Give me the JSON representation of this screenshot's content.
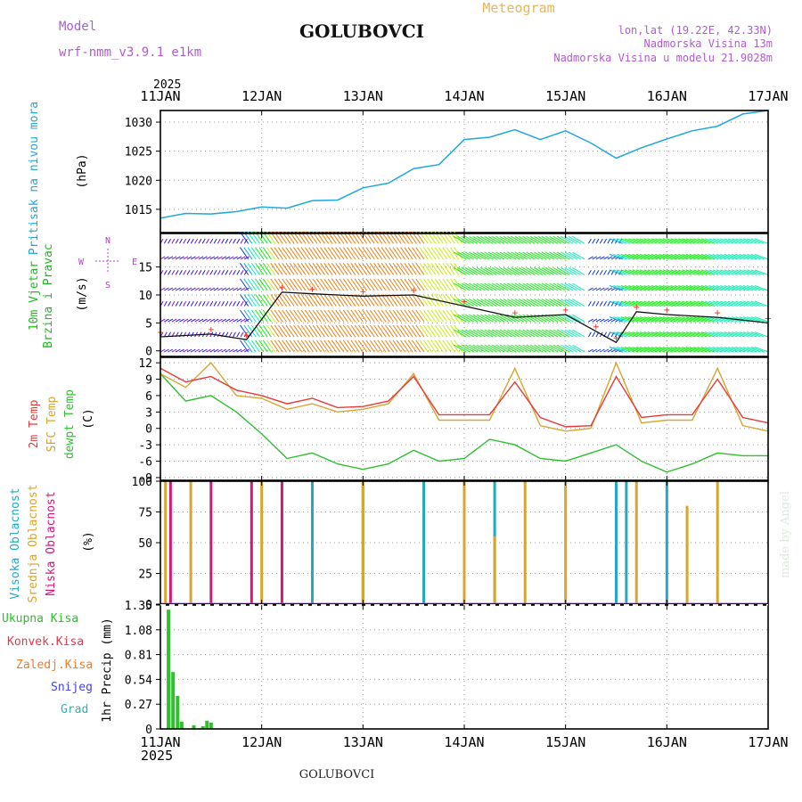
{
  "header": {
    "model_label": "Model",
    "model_name": "wrf-nmm_v3.9.1 e1km",
    "location": "GOLUBOVCI",
    "chart_type_label": "Meteogram",
    "coords": "lon,lat (19.22E, 42.33N)",
    "elevation": "Nadmorska Visina 13m",
    "model_elevation": "Nadmorska Visina u modelu 21.9028m"
  },
  "footer": {
    "location": "GOLUBOVCI",
    "credit": "made by Angel"
  },
  "colors": {
    "pressure": "#1fa8dc",
    "temp2m": "#e83a3a",
    "sfc_temp": "#d8a530",
    "dewpoint": "#2fbf2f",
    "cloud_high": "#21a9c6",
    "cloud_mid": "#d8a530",
    "cloud_low": "#d6157b",
    "precip": "#2fbf2f",
    "wind_label": "#21b921",
    "compass": "#b93cc8",
    "snow": "#4444dd",
    "graupel": "#2ab5b5",
    "frozen": "#f07a2a",
    "conv": "#e8364a"
  },
  "chart_data": [
    {
      "type": "line",
      "title": "Pritisak na nivou mora",
      "ylabel": "(hPa)",
      "x_ticks": [
        "11JAN",
        "12JAN",
        "13JAN",
        "14JAN",
        "15JAN",
        "16JAN",
        "17JAN"
      ],
      "x_year": "2025",
      "ylim": [
        1011,
        1032
      ],
      "y_ticks": [
        "1015",
        "1020",
        "1025",
        "1030"
      ],
      "grid": true,
      "series": [
        {
          "name": "Pritisak na nivou mora",
          "x_days": [
            0,
            0.25,
            0.5,
            0.75,
            1.0,
            1.25,
            1.5,
            1.75,
            2.0,
            2.25,
            2.5,
            2.75,
            3.0,
            3.25,
            3.5,
            3.75,
            4.0,
            4.25,
            4.5,
            4.75,
            5.0,
            5.25,
            5.5,
            5.75,
            6.0
          ],
          "values": [
            1013.5,
            1014.3,
            1014.2,
            1014.6,
            1015.4,
            1015.2,
            1016.5,
            1016.6,
            1018.7,
            1019.5,
            1022.0,
            1022.7,
            1027.0,
            1027.4,
            1028.7,
            1027.0,
            1028.5,
            1026.4,
            1023.8,
            1025.6,
            1027.1,
            1028.5,
            1029.3,
            1031.4,
            1032.0
          ]
        }
      ]
    },
    {
      "type": "scatter",
      "title": "10m Vjetar Brzina i Pravac",
      "ylabel": "(m/s)",
      "ylim": [
        -1,
        21
      ],
      "y_ticks": [
        "0",
        "5",
        "10",
        "15"
      ],
      "compass": [
        "N",
        "W",
        "E",
        "S"
      ],
      "grid": true,
      "series": [
        {
          "name": "10m Vjetar",
          "x_days": [
            0,
            0.5,
            0.85,
            1.2,
            1.5,
            2.0,
            2.5,
            3.0,
            3.5,
            4.0,
            4.3,
            4.5,
            4.7,
            5.0,
            5.5,
            6.0
          ],
          "values": [
            2.5,
            3.0,
            2.0,
            10.5,
            10.2,
            9.8,
            10.0,
            8.0,
            6.0,
            6.5,
            3.5,
            1.5,
            7.0,
            6.5,
            6.0,
            5.0
          ]
        }
      ]
    },
    {
      "type": "line",
      "title": "2m Temp / SFC Temp / dewpt Temp",
      "ylabel": "(C)",
      "ylim": [
        -9.5,
        13
      ],
      "y_ticks": [
        "-9",
        "-6",
        "-3",
        "0",
        "3",
        "6",
        "9",
        "12"
      ],
      "grid": true,
      "series": [
        {
          "name": "2m Temp",
          "x_days": [
            0,
            0.25,
            0.5,
            0.75,
            1.0,
            1.25,
            1.5,
            1.75,
            2.0,
            2.25,
            2.5,
            2.75,
            3.0,
            3.25,
            3.5,
            3.75,
            4.0,
            4.25,
            4.5,
            4.75,
            5.0,
            5.25,
            5.5,
            5.75,
            6.0
          ],
          "values": [
            11,
            8.5,
            9.5,
            7,
            6,
            4.5,
            5.5,
            3.8,
            4,
            5,
            9.5,
            2.5,
            2.5,
            2.5,
            8.5,
            2,
            0.3,
            0.5,
            9.5,
            2,
            2.5,
            2.5,
            9,
            2,
            1
          ]
        },
        {
          "name": "SFC Temp",
          "x_days": [
            0,
            0.25,
            0.5,
            0.75,
            1.0,
            1.25,
            1.5,
            1.75,
            2.0,
            2.25,
            2.5,
            2.75,
            3.0,
            3.25,
            3.5,
            3.75,
            4.0,
            4.25,
            4.5,
            4.75,
            5.0,
            5.25,
            5.5,
            5.75,
            6.0
          ],
          "values": [
            10,
            7.5,
            12,
            6,
            5.5,
            3.5,
            4.5,
            3.0,
            3.5,
            4.5,
            10,
            1.5,
            1.5,
            1.5,
            11,
            0.5,
            -0.5,
            0,
            12,
            1,
            1.5,
            1.5,
            11,
            0.5,
            -0.5
          ]
        },
        {
          "name": "dewpt Temp",
          "x_days": [
            0,
            0.25,
            0.5,
            0.75,
            1.0,
            1.25,
            1.5,
            1.75,
            2.0,
            2.25,
            2.5,
            2.75,
            3.0,
            3.25,
            3.5,
            3.75,
            4.0,
            4.25,
            4.5,
            4.75,
            5.0,
            5.25,
            5.5,
            5.75,
            6.0
          ],
          "values": [
            10,
            5,
            6,
            3,
            -1,
            -5.5,
            -4.5,
            -6.5,
            -7.5,
            -6.5,
            -4.0,
            -6,
            -5.5,
            -2,
            -3,
            -5.5,
            -6,
            -4.5,
            -3,
            -6,
            -8,
            -6.5,
            -4.5,
            -5,
            -5
          ]
        }
      ]
    },
    {
      "type": "bar",
      "title": "Visoka / Srednja / Niska Oblacnost",
      "ylabel": "(%)",
      "ylim": [
        0,
        100
      ],
      "y_ticks": [
        "0",
        "25",
        "50",
        "75",
        "100"
      ],
      "grid": true,
      "series": [
        {
          "name": "Visoka Oblacnost",
          "x_days": [
            1.5,
            2.0,
            2.6,
            3.3,
            4.5,
            4.6,
            5.0
          ],
          "values": [
            100,
            100,
            100,
            100,
            100,
            100,
            100
          ]
        },
        {
          "name": "Srednja Oblacnost",
          "x_days": [
            0.05,
            0.3,
            1.0,
            2.0,
            3.0,
            3.3,
            3.6,
            4.0,
            4.7,
            5.2,
            5.5
          ],
          "values": [
            100,
            100,
            100,
            100,
            100,
            55,
            100,
            100,
            100,
            80,
            100
          ]
        },
        {
          "name": "Niska Oblacnost",
          "x_days": [
            0.1,
            0.5,
            0.9,
            1.2
          ],
          "values": [
            100,
            100,
            100,
            100
          ]
        }
      ]
    },
    {
      "type": "bar",
      "title": "Ukupna Kisa / Konvek.Kisa / Zaledj.Kisa / Snijeg / Grad",
      "ylabel": "1hr Precip (mm)",
      "ylim": [
        0,
        1.35
      ],
      "y_ticks": [
        "0",
        "0.27",
        "0.54",
        "0.81",
        "1.08",
        "1.35"
      ],
      "grid": true,
      "series": [
        {
          "name": "Ukupna Kisa",
          "x_days": [
            0.08,
            0.125,
            0.17,
            0.21,
            0.33,
            0.42,
            0.46,
            0.5
          ],
          "values": [
            1.3,
            0.62,
            0.36,
            0.08,
            0.04,
            0.03,
            0.09,
            0.07
          ]
        }
      ]
    }
  ]
}
